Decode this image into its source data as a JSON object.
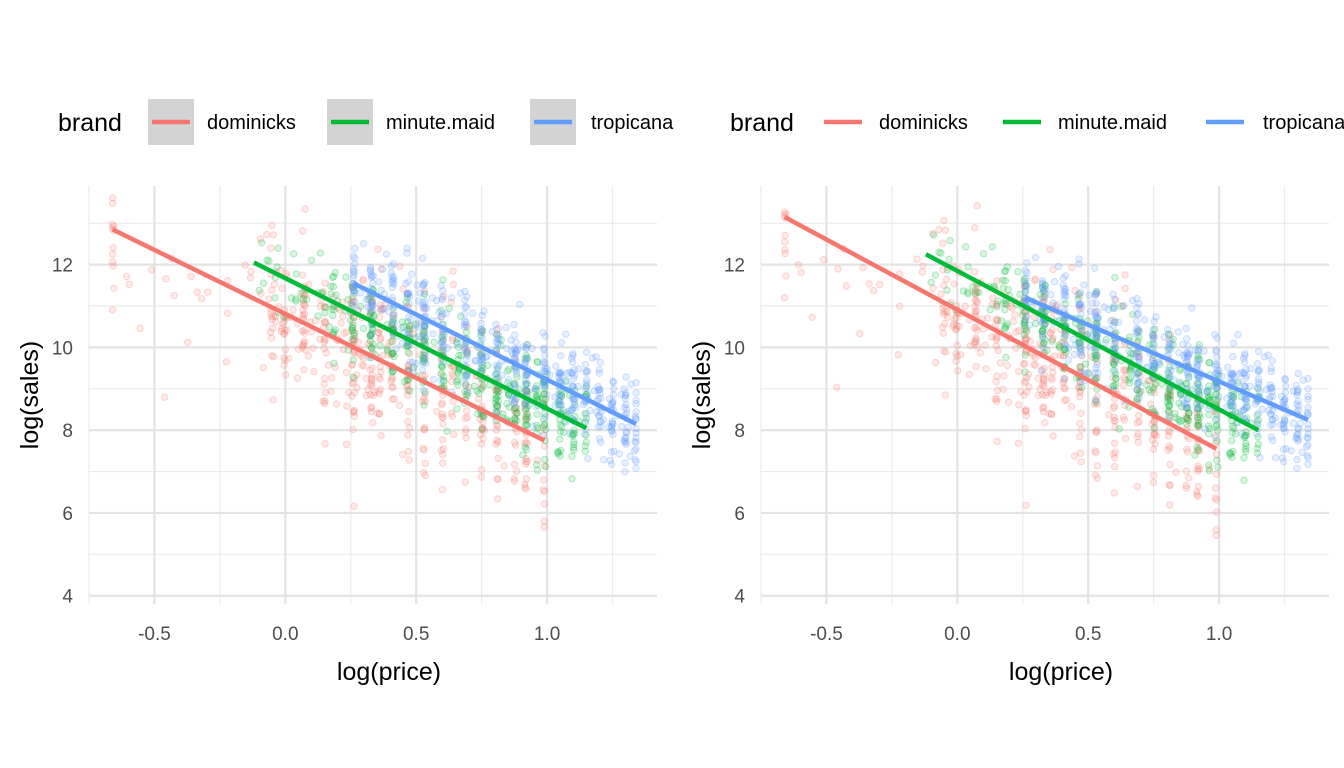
{
  "chart_data": [
    {
      "type": "scatter",
      "title": "",
      "xlabel": "log(price)",
      "ylabel": "log(sales)",
      "xlim": [
        -0.75,
        1.42
      ],
      "ylim": [
        3.8,
        13.9
      ],
      "x_ticks": [
        -0.5,
        0.0,
        0.5,
        1.0
      ],
      "x_tick_labels": [
        "-0.5",
        "0.0",
        "0.5",
        "1.0"
      ],
      "y_ticks": [
        4,
        6,
        8,
        10,
        12
      ],
      "y_tick_labels": [
        "4",
        "6",
        "8",
        "10",
        "12"
      ],
      "grid": true,
      "legend": {
        "title": "brand",
        "position": "top",
        "key_background": "#d3d3d3"
      },
      "point_alpha": 0.15,
      "series": [
        {
          "name": "dominicks",
          "color": "#F8766D",
          "x_range": [
            -0.66,
            0.99
          ],
          "fit_line": [
            [
              -0.66,
              12.85
            ],
            [
              0.99,
              7.75
            ]
          ]
        },
        {
          "name": "minute.maid",
          "color": "#00BA38",
          "x_range": [
            -0.12,
            1.15
          ],
          "fit_line": [
            [
              -0.12,
              12.05
            ],
            [
              1.15,
              8.05
            ]
          ]
        },
        {
          "name": "tropicana",
          "color": "#619CFF",
          "x_range": [
            0.26,
            1.34
          ],
          "fit_line": [
            [
              0.26,
              11.55
            ],
            [
              1.34,
              8.15
            ]
          ]
        }
      ]
    },
    {
      "type": "scatter",
      "title": "",
      "xlabel": "log(price)",
      "ylabel": "log(sales)",
      "xlim": [
        -0.75,
        1.42
      ],
      "ylim": [
        3.8,
        13.9
      ],
      "x_ticks": [
        -0.5,
        0.0,
        0.5,
        1.0
      ],
      "x_tick_labels": [
        "-0.5",
        "0.0",
        "0.5",
        "1.0"
      ],
      "y_ticks": [
        4,
        6,
        8,
        10,
        12
      ],
      "y_tick_labels": [
        "4",
        "6",
        "8",
        "10",
        "12"
      ],
      "grid": true,
      "legend": {
        "title": "brand",
        "position": "top",
        "key_background": "none"
      },
      "point_alpha": 0.15,
      "series": [
        {
          "name": "dominicks",
          "color": "#F8766D",
          "x_range": [
            -0.66,
            0.99
          ],
          "fit_line": [
            [
              -0.66,
              13.15
            ],
            [
              0.99,
              7.55
            ]
          ]
        },
        {
          "name": "minute.maid",
          "color": "#00BA38",
          "x_range": [
            -0.12,
            1.15
          ],
          "fit_line": [
            [
              -0.12,
              12.25
            ],
            [
              1.15,
              8.0
            ]
          ]
        },
        {
          "name": "tropicana",
          "color": "#619CFF",
          "x_range": [
            0.26,
            1.34
          ],
          "fit_line": [
            [
              0.26,
              11.2
            ],
            [
              1.34,
              8.25
            ]
          ]
        }
      ]
    }
  ]
}
